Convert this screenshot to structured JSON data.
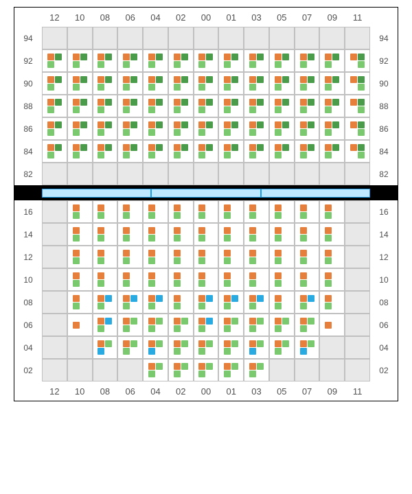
{
  "colors": {
    "orange": "#e67e3c",
    "darkgreen": "#4a9b4a",
    "lightgreen": "#7bc96f",
    "blue": "#29abe2",
    "white": "#ffffff",
    "gray_bg": "#e8e8e8",
    "grid_line": "#c0c0c0",
    "label_text": "#505050",
    "black": "#000000",
    "divider_fill": "#bfe8ff",
    "divider_border": "#1a9be8"
  },
  "column_labels": [
    "12",
    "10",
    "08",
    "06",
    "04",
    "02",
    "00",
    "01",
    "03",
    "05",
    "07",
    "09",
    "11"
  ],
  "top_panel": {
    "row_labels_top_to_bottom": [
      "94",
      "92",
      "90",
      "88",
      "86",
      "84",
      "82"
    ],
    "patterns": {
      "A": [
        [
          "orange",
          "darkgreen"
        ],
        [
          "lightgreen",
          null
        ]
      ],
      "B": [
        [
          "orange",
          "darkgreen"
        ],
        [
          null,
          "lightgreen"
        ]
      ]
    },
    "rows": [
      {
        "label": "94",
        "cells": [
          null,
          null,
          null,
          null,
          null,
          null,
          null,
          null,
          null,
          null,
          null,
          null,
          null
        ]
      },
      {
        "label": "92",
        "cells": [
          "A",
          "A",
          "A",
          "A",
          "A",
          "A",
          "A",
          "A",
          "A",
          "A",
          "A",
          "A",
          "B"
        ]
      },
      {
        "label": "90",
        "cells": [
          "A",
          "A",
          "A",
          "A",
          "A",
          "A",
          "A",
          "A",
          "A",
          "A",
          "A",
          "A",
          "B"
        ]
      },
      {
        "label": "88",
        "cells": [
          "A",
          "A",
          "A",
          "A",
          "A",
          "A",
          "A",
          "A",
          "A",
          "A",
          "A",
          "A",
          "B"
        ]
      },
      {
        "label": "86",
        "cells": [
          "A",
          "A",
          "A",
          "A",
          "A",
          "A",
          "A",
          "A",
          "A",
          "A",
          "A",
          "A",
          "B"
        ]
      },
      {
        "label": "84",
        "cells": [
          "A",
          "A",
          "A",
          "A",
          "A",
          "A",
          "A",
          "A",
          "A",
          "A",
          "A",
          "A",
          "B"
        ]
      },
      {
        "label": "82",
        "cells": [
          null,
          null,
          null,
          null,
          null,
          null,
          null,
          null,
          null,
          null,
          null,
          null,
          null
        ]
      }
    ]
  },
  "bottom_panel": {
    "row_labels_top_to_bottom": [
      "16",
      "14",
      "12",
      "10",
      "08",
      "06",
      "04",
      "02"
    ],
    "rows": [
      {
        "label": "16",
        "cells": [
          null,
          [
            [
              "orange",
              null
            ],
            [
              "lightgreen",
              null
            ]
          ],
          [
            [
              "orange",
              null
            ],
            [
              "lightgreen",
              null
            ]
          ],
          [
            [
              "orange",
              null
            ],
            [
              "lightgreen",
              null
            ]
          ],
          [
            [
              "orange",
              null
            ],
            [
              "lightgreen",
              null
            ]
          ],
          [
            [
              "orange",
              null
            ],
            [
              "lightgreen",
              null
            ]
          ],
          [
            [
              "orange",
              null
            ],
            [
              "lightgreen",
              null
            ]
          ],
          [
            [
              "orange",
              null
            ],
            [
              "lightgreen",
              null
            ]
          ],
          [
            [
              "orange",
              null
            ],
            [
              "lightgreen",
              null
            ]
          ],
          [
            [
              "orange",
              null
            ],
            [
              "lightgreen",
              null
            ]
          ],
          [
            [
              "orange",
              null
            ],
            [
              "lightgreen",
              null
            ]
          ],
          [
            [
              "orange",
              null
            ],
            [
              "lightgreen",
              null
            ]
          ],
          null
        ]
      },
      {
        "label": "14",
        "cells": [
          null,
          [
            [
              "orange",
              null
            ],
            [
              "lightgreen",
              null
            ]
          ],
          [
            [
              "orange",
              null
            ],
            [
              "lightgreen",
              null
            ]
          ],
          [
            [
              "orange",
              null
            ],
            [
              "lightgreen",
              null
            ]
          ],
          [
            [
              "orange",
              null
            ],
            [
              "lightgreen",
              null
            ]
          ],
          [
            [
              "orange",
              null
            ],
            [
              "lightgreen",
              null
            ]
          ],
          [
            [
              "orange",
              null
            ],
            [
              "lightgreen",
              null
            ]
          ],
          [
            [
              "orange",
              null
            ],
            [
              "lightgreen",
              null
            ]
          ],
          [
            [
              "orange",
              null
            ],
            [
              "lightgreen",
              null
            ]
          ],
          [
            [
              "orange",
              null
            ],
            [
              "lightgreen",
              null
            ]
          ],
          [
            [
              "orange",
              null
            ],
            [
              "lightgreen",
              null
            ]
          ],
          [
            [
              "orange",
              null
            ],
            [
              "lightgreen",
              null
            ]
          ],
          null
        ]
      },
      {
        "label": "12",
        "cells": [
          null,
          [
            [
              "orange",
              null
            ],
            [
              "lightgreen",
              null
            ]
          ],
          [
            [
              "orange",
              null
            ],
            [
              "lightgreen",
              null
            ]
          ],
          [
            [
              "orange",
              null
            ],
            [
              "lightgreen",
              null
            ]
          ],
          [
            [
              "orange",
              null
            ],
            [
              "lightgreen",
              null
            ]
          ],
          [
            [
              "orange",
              null
            ],
            [
              "lightgreen",
              null
            ]
          ],
          [
            [
              "orange",
              null
            ],
            [
              "lightgreen",
              null
            ]
          ],
          [
            [
              "orange",
              null
            ],
            [
              "lightgreen",
              null
            ]
          ],
          [
            [
              "orange",
              null
            ],
            [
              "lightgreen",
              null
            ]
          ],
          [
            [
              "orange",
              null
            ],
            [
              "lightgreen",
              null
            ]
          ],
          [
            [
              "orange",
              null
            ],
            [
              "lightgreen",
              null
            ]
          ],
          [
            [
              "orange",
              null
            ],
            [
              "lightgreen",
              null
            ]
          ],
          null
        ]
      },
      {
        "label": "10",
        "cells": [
          null,
          [
            [
              "orange",
              null
            ],
            [
              "lightgreen",
              null
            ]
          ],
          [
            [
              "orange",
              null
            ],
            [
              "lightgreen",
              null
            ]
          ],
          [
            [
              "orange",
              null
            ],
            [
              "lightgreen",
              null
            ]
          ],
          [
            [
              "orange",
              null
            ],
            [
              "lightgreen",
              null
            ]
          ],
          [
            [
              "orange",
              null
            ],
            [
              "lightgreen",
              null
            ]
          ],
          [
            [
              "orange",
              null
            ],
            [
              "lightgreen",
              null
            ]
          ],
          [
            [
              "orange",
              null
            ],
            [
              "lightgreen",
              null
            ]
          ],
          [
            [
              "orange",
              null
            ],
            [
              "lightgreen",
              null
            ]
          ],
          [
            [
              "orange",
              null
            ],
            [
              "lightgreen",
              null
            ]
          ],
          [
            [
              "orange",
              null
            ],
            [
              "lightgreen",
              null
            ]
          ],
          [
            [
              "orange",
              null
            ],
            [
              "lightgreen",
              null
            ]
          ],
          null
        ]
      },
      {
        "label": "08",
        "cells": [
          null,
          [
            [
              "orange",
              null
            ],
            [
              "lightgreen",
              null
            ]
          ],
          [
            [
              "orange",
              "blue"
            ],
            [
              "lightgreen",
              null
            ]
          ],
          [
            [
              "orange",
              "blue"
            ],
            [
              "lightgreen",
              null
            ]
          ],
          [
            [
              "orange",
              "blue"
            ],
            [
              "lightgreen",
              null
            ]
          ],
          [
            [
              "orange",
              null
            ],
            [
              "lightgreen",
              null
            ]
          ],
          [
            [
              "orange",
              "blue"
            ],
            [
              "lightgreen",
              null
            ]
          ],
          [
            [
              "orange",
              "blue"
            ],
            [
              "lightgreen",
              null
            ]
          ],
          [
            [
              "orange",
              "blue"
            ],
            [
              "lightgreen",
              null
            ]
          ],
          [
            [
              "orange",
              null
            ],
            [
              "lightgreen",
              null
            ]
          ],
          [
            [
              "orange",
              "blue"
            ],
            [
              "lightgreen",
              null
            ]
          ],
          [
            [
              "orange",
              null
            ],
            [
              "lightgreen",
              null
            ]
          ],
          null
        ]
      },
      {
        "label": "06",
        "cells": [
          null,
          [
            [
              "orange",
              null
            ],
            [
              null,
              null
            ]
          ],
          [
            [
              "orange",
              "blue"
            ],
            [
              "lightgreen",
              null
            ]
          ],
          [
            [
              "orange",
              "lightgreen"
            ],
            [
              "lightgreen",
              null
            ]
          ],
          [
            [
              "orange",
              "lightgreen"
            ],
            [
              "lightgreen",
              null
            ]
          ],
          [
            [
              "orange",
              "lightgreen"
            ],
            [
              "lightgreen",
              null
            ]
          ],
          [
            [
              "orange",
              "blue"
            ],
            [
              "lightgreen",
              null
            ]
          ],
          [
            [
              "orange",
              "lightgreen"
            ],
            [
              "lightgreen",
              null
            ]
          ],
          [
            [
              "orange",
              "lightgreen"
            ],
            [
              "lightgreen",
              null
            ]
          ],
          [
            [
              "orange",
              "lightgreen"
            ],
            [
              "lightgreen",
              null
            ]
          ],
          [
            [
              "orange",
              "lightgreen"
            ],
            [
              "lightgreen",
              null
            ]
          ],
          [
            [
              "orange",
              null
            ],
            [
              null,
              null
            ]
          ],
          null
        ]
      },
      {
        "label": "04",
        "cells": [
          null,
          null,
          [
            [
              "orange",
              "lightgreen"
            ],
            [
              "blue",
              null
            ]
          ],
          [
            [
              "orange",
              "lightgreen"
            ],
            [
              "lightgreen",
              null
            ]
          ],
          [
            [
              "orange",
              "lightgreen"
            ],
            [
              "blue",
              null
            ]
          ],
          [
            [
              "orange",
              "lightgreen"
            ],
            [
              "lightgreen",
              null
            ]
          ],
          [
            [
              "orange",
              "lightgreen"
            ],
            [
              "lightgreen",
              null
            ]
          ],
          [
            [
              "orange",
              "lightgreen"
            ],
            [
              "lightgreen",
              null
            ]
          ],
          [
            [
              "orange",
              "lightgreen"
            ],
            [
              "blue",
              null
            ]
          ],
          [
            [
              "orange",
              "lightgreen"
            ],
            [
              "lightgreen",
              null
            ]
          ],
          [
            [
              "orange",
              "lightgreen"
            ],
            [
              "blue",
              null
            ]
          ],
          null,
          null
        ]
      },
      {
        "label": "02",
        "cells": [
          null,
          null,
          null,
          null,
          [
            [
              "orange",
              "lightgreen"
            ],
            [
              "lightgreen",
              null
            ]
          ],
          [
            [
              "orange",
              "lightgreen"
            ],
            [
              "lightgreen",
              null
            ]
          ],
          [
            [
              "orange",
              "lightgreen"
            ],
            [
              "lightgreen",
              null
            ]
          ],
          [
            [
              "orange",
              "lightgreen"
            ],
            [
              "lightgreen",
              null
            ]
          ],
          [
            [
              "orange",
              "lightgreen"
            ],
            [
              "lightgreen",
              null
            ]
          ],
          null,
          null,
          null,
          null
        ]
      }
    ]
  },
  "divider_segments": 3
}
